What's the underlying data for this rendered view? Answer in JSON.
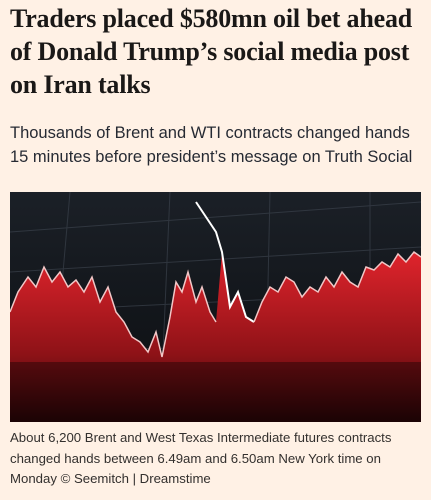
{
  "header": {
    "title": "Traders placed $580mn oil bet ahead of Donald Trump’s social media post on Iran talks",
    "standfirst": "Thousands of Brent and WTI contracts changed hands 15 minutes before president’s message on Truth Social"
  },
  "image": {
    "caption": "About 6,200 Brent and West Texas Intermediate futures contracts changed hands between 6.49am and 6.50am New York time on Monday © Seemitch | Dreamstime"
  }
}
